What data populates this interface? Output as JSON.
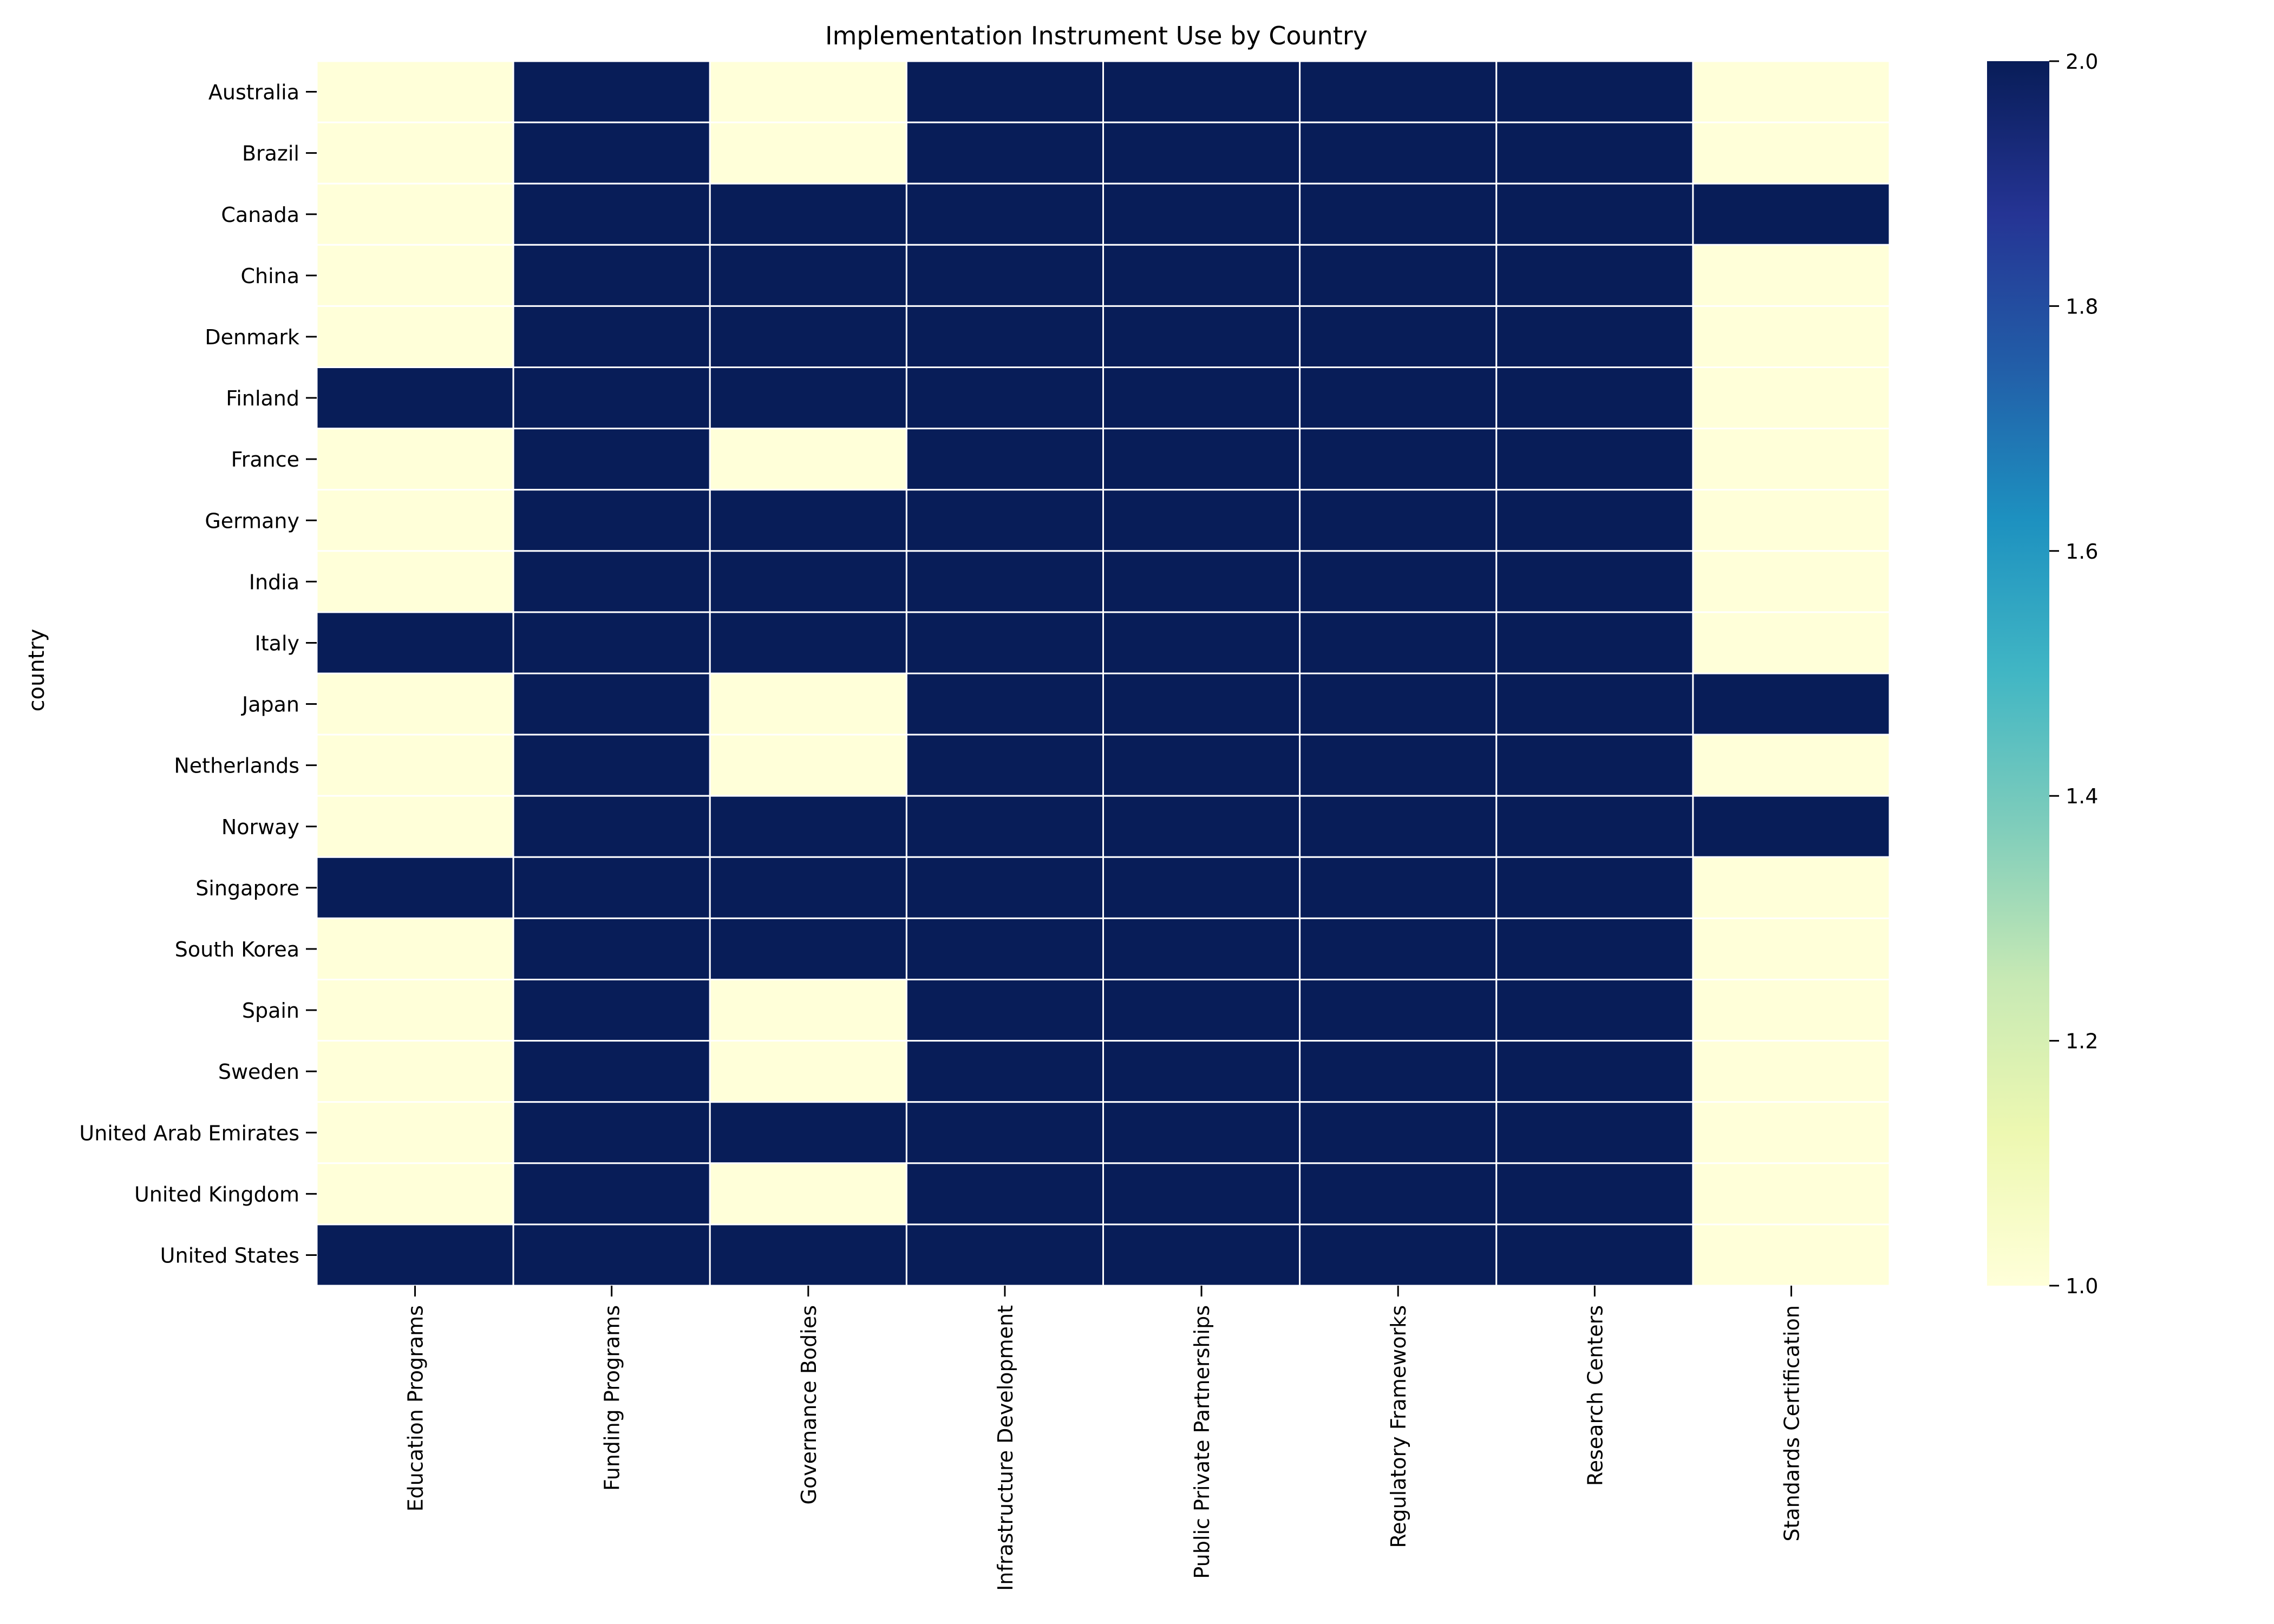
{
  "chart_data": {
    "type": "heatmap",
    "title": "Implementation Instrument Use by Country",
    "ylabel": "country",
    "xlabel": "",
    "rows": [
      "Australia",
      "Brazil",
      "Canada",
      "China",
      "Denmark",
      "Finland",
      "France",
      "Germany",
      "India",
      "Italy",
      "Japan",
      "Netherlands",
      "Norway",
      "Singapore",
      "South Korea",
      "Spain",
      "Sweden",
      "United Arab Emirates",
      "United Kingdom",
      "United States"
    ],
    "columns": [
      "Education Programs",
      "Funding Programs",
      "Governance Bodies",
      "Infrastructure Development",
      "Public Private Partnerships",
      "Regulatory Frameworks",
      "Research Centers",
      "Standards Certification"
    ],
    "values": [
      [
        1,
        2,
        1,
        2,
        2,
        2,
        2,
        1
      ],
      [
        1,
        2,
        1,
        2,
        2,
        2,
        2,
        1
      ],
      [
        1,
        2,
        2,
        2,
        2,
        2,
        2,
        2
      ],
      [
        1,
        2,
        2,
        2,
        2,
        2,
        2,
        1
      ],
      [
        1,
        2,
        2,
        2,
        2,
        2,
        2,
        1
      ],
      [
        2,
        2,
        2,
        2,
        2,
        2,
        2,
        1
      ],
      [
        1,
        2,
        1,
        2,
        2,
        2,
        2,
        1
      ],
      [
        1,
        2,
        2,
        2,
        2,
        2,
        2,
        1
      ],
      [
        1,
        2,
        2,
        2,
        2,
        2,
        2,
        1
      ],
      [
        2,
        2,
        2,
        2,
        2,
        2,
        2,
        1
      ],
      [
        1,
        2,
        1,
        2,
        2,
        2,
        2,
        2
      ],
      [
        1,
        2,
        1,
        2,
        2,
        2,
        2,
        1
      ],
      [
        1,
        2,
        2,
        2,
        2,
        2,
        2,
        2
      ],
      [
        2,
        2,
        2,
        2,
        2,
        2,
        2,
        1
      ],
      [
        1,
        2,
        2,
        2,
        2,
        2,
        2,
        1
      ],
      [
        1,
        2,
        1,
        2,
        2,
        2,
        2,
        1
      ],
      [
        1,
        2,
        1,
        2,
        2,
        2,
        2,
        1
      ],
      [
        1,
        2,
        2,
        2,
        2,
        2,
        2,
        1
      ],
      [
        1,
        2,
        1,
        2,
        2,
        2,
        2,
        1
      ],
      [
        2,
        2,
        2,
        2,
        2,
        2,
        2,
        1
      ]
    ],
    "colorbar": {
      "min": 1.0,
      "max": 2.0,
      "ticks": [
        "1.0",
        "1.2",
        "1.4",
        "1.6",
        "1.8",
        "2.0"
      ],
      "colormap": "YlGnBu",
      "stops": [
        "#ffffd9",
        "#edf8b1",
        "#c7e9b4",
        "#7fcdbb",
        "#41b6c4",
        "#1d91c0",
        "#225ea8",
        "#253494",
        "#081d58"
      ]
    },
    "grid_line_color": "#ffffff"
  }
}
